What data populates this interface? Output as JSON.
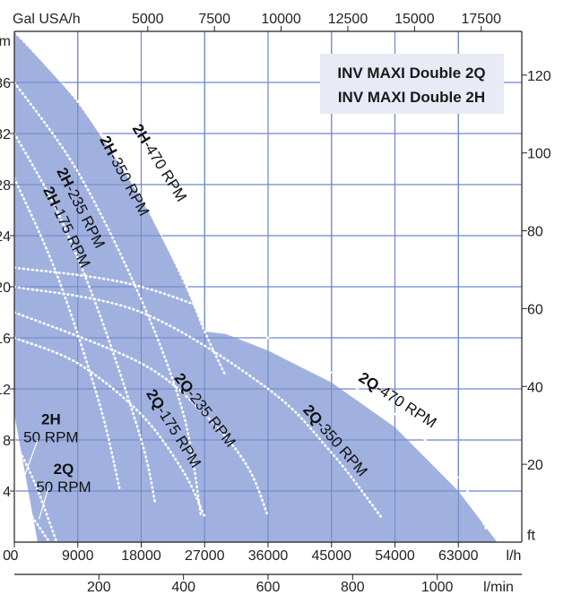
{
  "chart_data": {
    "type": "line",
    "legend_box": [
      "INV MAXI Double 2Q",
      "INV MAXI Double 2H"
    ],
    "envelope_color": "#97a8dc",
    "grid_color": "#6f86c9",
    "curve_color": "#ffffff",
    "x_bottom": {
      "unit_label": "l/h",
      "ticks": [
        0,
        9000,
        18000,
        27000,
        36000,
        45000,
        54000,
        63000
      ],
      "tick_labels": [
        "0",
        "9000",
        "18000",
        "27000",
        "36000",
        "45000",
        "54000",
        "63000"
      ],
      "range": [
        0,
        72000
      ]
    },
    "x_top": {
      "unit_label": "Gal USA/h",
      "ticks": [
        5000,
        7500,
        10000,
        12500,
        15000,
        17500
      ],
      "tick_labels": [
        "5000",
        "7500",
        "10000",
        "12500",
        "15000",
        "17500"
      ]
    },
    "x_sub": {
      "unit_label": "l/min",
      "ticks": [
        200,
        400,
        600,
        800,
        1000
      ],
      "tick_labels": [
        "200",
        "400",
        "600",
        "800",
        "1000"
      ]
    },
    "y_left": {
      "unit_label": "m",
      "ticks": [
        4,
        8,
        12,
        16,
        20,
        24,
        28,
        32,
        36
      ],
      "tick_labels": [
        "4",
        "8",
        "12",
        "16",
        "20",
        "24",
        "28",
        "32",
        "36"
      ],
      "range": [
        0,
        40
      ]
    },
    "y_right": {
      "unit_label": "ft",
      "ticks": [
        20,
        40,
        60,
        80,
        100,
        120
      ],
      "tick_labels": [
        "20",
        "40",
        "60",
        "80",
        "100",
        "120"
      ]
    },
    "series": [
      {
        "name_bold": "2H",
        "name_rest": "-470 RPM",
        "points": [
          [
            0,
            40
          ],
          [
            9000,
            34.5
          ],
          [
            18000,
            27
          ],
          [
            24000,
            20.5
          ],
          [
            27000,
            16.5
          ],
          [
            30000,
            13
          ]
        ]
      },
      {
        "name_bold": "2H",
        "name_rest": "-350 RPM",
        "points": [
          [
            0,
            36
          ],
          [
            9000,
            29
          ],
          [
            18000,
            19
          ],
          [
            24000,
            10
          ],
          [
            26500,
            2
          ]
        ]
      },
      {
        "name_bold": "2H",
        "name_rest": "-235 RPM",
        "points": [
          [
            0,
            32
          ],
          [
            6000,
            26
          ],
          [
            12000,
            18
          ],
          [
            18000,
            8
          ],
          [
            20000,
            3
          ]
        ]
      },
      {
        "name_bold": "2H",
        "name_rest": "-175 RPM",
        "points": [
          [
            0,
            28.5
          ],
          [
            6000,
            21
          ],
          [
            12000,
            11
          ],
          [
            15000,
            4
          ]
        ]
      },
      {
        "name_bold": "2Q",
        "name_rest": "-470 RPM",
        "points": [
          [
            0,
            21.5
          ],
          [
            18000,
            20
          ],
          [
            36000,
            16
          ],
          [
            54000,
            10
          ],
          [
            63000,
            5
          ],
          [
            67000,
            1
          ]
        ]
      },
      {
        "name_bold": "2Q",
        "name_rest": "-350 RPM",
        "points": [
          [
            0,
            20
          ],
          [
            18000,
            18
          ],
          [
            36000,
            12
          ],
          [
            45000,
            7
          ],
          [
            52000,
            2
          ]
        ]
      },
      {
        "name_bold": "2Q",
        "name_rest": "-235 RPM",
        "points": [
          [
            0,
            18
          ],
          [
            18000,
            14
          ],
          [
            27000,
            10
          ],
          [
            33000,
            6
          ],
          [
            36000,
            2
          ]
        ]
      },
      {
        "name_bold": "2Q",
        "name_rest": "-175 RPM",
        "points": [
          [
            0,
            16
          ],
          [
            9000,
            14
          ],
          [
            18000,
            10
          ],
          [
            24000,
            5.5
          ],
          [
            27000,
            2
          ]
        ]
      },
      {
        "name_bold": "2H",
        "name_rest": "50 RPM",
        "points": [
          [
            0,
            8
          ],
          [
            3000,
            4.5
          ],
          [
            6000,
            0
          ]
        ]
      },
      {
        "name_bold": "2Q",
        "name_rest": "50 RPM",
        "points": [
          [
            0,
            4
          ],
          [
            2500,
            2
          ],
          [
            5000,
            0
          ]
        ]
      }
    ],
    "envelope": [
      [
        0,
        40
      ],
      [
        9000,
        34.5
      ],
      [
        18000,
        27
      ],
      [
        24000,
        20.5
      ],
      [
        27000,
        16.5
      ],
      [
        30000,
        16.3
      ],
      [
        36000,
        15
      ],
      [
        45000,
        12.5
      ],
      [
        54000,
        9
      ],
      [
        63000,
        4
      ],
      [
        68500,
        0
      ],
      [
        3300,
        0
      ],
      [
        0,
        10
      ]
    ],
    "labels": [
      {
        "bold": "2H",
        "rest": "-470 RPM",
        "x": 20000,
        "y": 29.5,
        "angle": 58
      },
      {
        "bold": "2H",
        "rest": "-350 RPM",
        "x": 15000,
        "y": 28.5,
        "angle": 62
      },
      {
        "bold": "2H",
        "rest": "-235 RPM",
        "x": 8800,
        "y": 26,
        "angle": 63
      },
      {
        "bold": "2H",
        "rest": "-175 RPM",
        "x": 6800,
        "y": 24.5,
        "angle": 64
      },
      {
        "bold": "2Q",
        "rest": "-470 RPM",
        "x": 54000,
        "y": 10.8,
        "angle": 33
      },
      {
        "bold": "2Q",
        "rest": "-350 RPM",
        "x": 45000,
        "y": 7.7,
        "angle": 49
      },
      {
        "bold": "2Q",
        "rest": "-235 RPM",
        "x": 26500,
        "y": 10.1,
        "angle": 52
      },
      {
        "bold": "2Q",
        "rest": "-175 RPM",
        "x": 22000,
        "y": 8.7,
        "angle": 58
      }
    ],
    "stacked_labels": [
      {
        "bold": "2H",
        "rest": "50 RPM",
        "x": 5200,
        "y": 8.4,
        "leader": [
          [
            3300,
            8.0
          ],
          [
            1200,
            4.8
          ]
        ]
      },
      {
        "bold": "2Q",
        "rest": "50 RPM",
        "x": 7000,
        "y": 4.5,
        "leader": [
          [
            4800,
            4.2
          ],
          [
            3500,
            1.8
          ]
        ]
      }
    ]
  }
}
